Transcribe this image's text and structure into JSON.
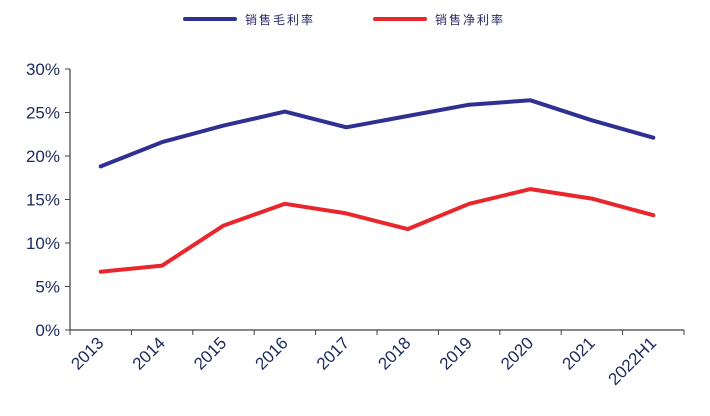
{
  "chart_data": {
    "type": "line",
    "categories": [
      "2013",
      "2014",
      "2015",
      "2016",
      "2017",
      "2018",
      "2019",
      "2020",
      "2021",
      "2022H1"
    ],
    "series": [
      {
        "name": "销售毛利率",
        "color": "#2e3192",
        "values": [
          18.8,
          21.6,
          23.5,
          25.1,
          23.3,
          24.6,
          25.9,
          26.4,
          24.1,
          22.1
        ]
      },
      {
        "name": "销售净利率",
        "color": "#e8262b",
        "values": [
          6.7,
          7.4,
          12.0,
          14.5,
          13.4,
          11.6,
          14.5,
          16.2,
          15.1,
          13.2
        ]
      }
    ],
    "yticks": [
      "0%",
      "5%",
      "10%",
      "15%",
      "20%",
      "25%",
      "30%"
    ],
    "ylim": [
      0,
      30
    ],
    "legend_position": "top",
    "grid": false
  }
}
